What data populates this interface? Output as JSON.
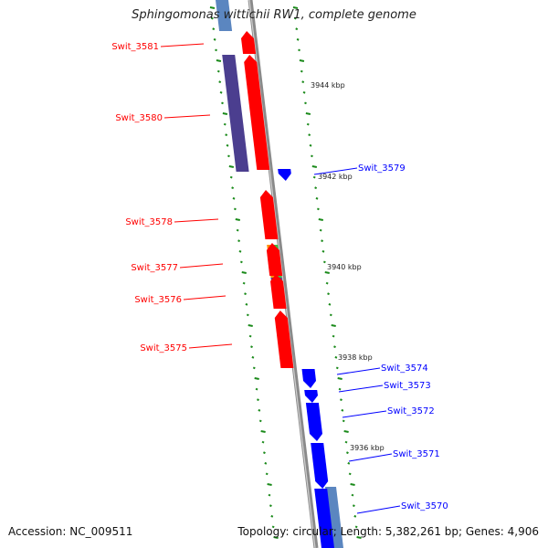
{
  "title": "Sphingomonas wittichii RW1, complete genome",
  "footer": {
    "accession": "Accession: NC_009511",
    "summary": "Topology: circular; Length: 5,382,261 bp; Genes: 4,906"
  },
  "colors": {
    "forward_gene": "#ff0000",
    "reverse_gene": "#0000ff",
    "feature_purple": "#4b3e8f",
    "feature_orange": "#ff8c00",
    "feature_green": "#44c044",
    "feature_steel": "#5b86c0",
    "tick_mark": "#1a8a1a",
    "backbone": "#8a8a8a"
  },
  "scale": {
    "unit": "kbp",
    "labels": [
      "3944 kbp",
      "3942 kbp",
      "3940 kbp",
      "3938 kbp",
      "3936 kbp"
    ]
  },
  "genes": [
    {
      "name": "Swit_3581",
      "strand": "forward"
    },
    {
      "name": "Swit_3580",
      "strand": "forward"
    },
    {
      "name": "Swit_3579",
      "strand": "reverse"
    },
    {
      "name": "Swit_3578",
      "strand": "forward"
    },
    {
      "name": "Swit_3577",
      "strand": "forward"
    },
    {
      "name": "Swit_3576",
      "strand": "forward"
    },
    {
      "name": "Swit_3575",
      "strand": "forward"
    },
    {
      "name": "Swit_3574",
      "strand": "reverse"
    },
    {
      "name": "Swit_3573",
      "strand": "reverse"
    },
    {
      "name": "Swit_3572",
      "strand": "reverse"
    },
    {
      "name": "Swit_3571",
      "strand": "reverse"
    },
    {
      "name": "Swit_3570",
      "strand": "reverse"
    }
  ]
}
